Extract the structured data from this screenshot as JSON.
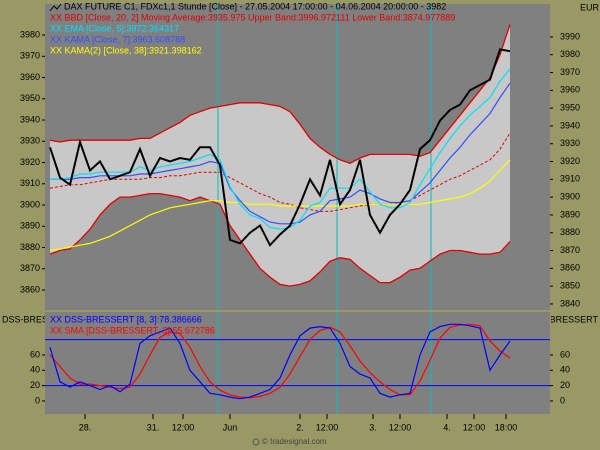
{
  "title": "DAX FUTURE C1, FDXc1,1 Stunde [Close] - 27.05.2004 17:00:00 - 04.06.2004 20:00:00 - 3982",
  "currency": "EUR",
  "footer": "© tradesignal.com",
  "chart_data": [
    {
      "type": "line",
      "x": [
        0,
        1,
        2,
        3,
        4,
        5,
        6,
        7,
        8,
        9,
        10,
        11,
        12,
        13,
        14,
        15,
        16,
        17,
        18,
        19,
        20,
        21,
        22,
        23,
        24,
        25,
        26,
        27,
        28,
        29,
        30,
        31,
        32,
        33,
        34,
        35,
        36,
        37,
        38,
        39,
        40,
        41,
        42,
        43,
        44,
        45,
        46
      ],
      "xlim": [
        -0.5,
        50
      ],
      "xticks": [
        {
          "value": 3.5,
          "label": "28."
        },
        {
          "value": 10.3,
          "label": "31."
        },
        {
          "value": 13.3,
          "label": "12:00"
        },
        {
          "value": 18,
          "label": "Jun"
        },
        {
          "value": 25,
          "label": "2."
        },
        {
          "value": 27.7,
          "label": "12:00"
        },
        {
          "value": 32.3,
          "label": "3."
        },
        {
          "value": 35,
          "label": "12:00"
        },
        {
          "value": 39.7,
          "label": "4."
        },
        {
          "value": 42.4,
          "label": "12:00"
        },
        {
          "value": 45.6,
          "label": "18:00"
        }
      ],
      "ylim": [
        3850.6,
        3994.6
      ],
      "yticks": [
        3860,
        3870,
        3880,
        3890,
        3900,
        3910,
        3920,
        3930,
        3940,
        3950,
        3960,
        3970,
        3980
      ],
      "y2lim": [
        3836.6,
        4008.5
      ],
      "y2ticks": [
        3840,
        3850,
        3860,
        3870,
        3880,
        3890,
        3900,
        3910,
        3920,
        3930,
        3940,
        3950,
        3960,
        3970,
        3980,
        3990
      ],
      "separators": [
        16.8,
        28.7,
        38.1
      ],
      "separator_color": "#00c0c0",
      "bands": {
        "name": "XX BBD [Close, 20, 2] Moving Average:3935.975 Upper Band:3996.972111 Lower Band:3874.977889",
        "color": "#e00000",
        "fill": "#c8c8c8",
        "axis": "y2",
        "upper": [
          3932,
          3931,
          3932,
          3932,
          3932,
          3932,
          3932,
          3932,
          3932,
          3933,
          3933,
          3936,
          3939,
          3942,
          3946,
          3948,
          3950,
          3951,
          3952,
          3953,
          3953,
          3953,
          3952,
          3951,
          3948,
          3941,
          3933,
          3928,
          3924,
          3921,
          3919,
          3922,
          3924,
          3924,
          3924,
          3924,
          3924,
          3923,
          3925,
          3932,
          3939,
          3946,
          3953,
          3960,
          3967,
          3980,
          3997
        ],
        "middle": [
          3905,
          3906,
          3907,
          3907,
          3908,
          3909,
          3910,
          3910,
          3910,
          3910,
          3911,
          3911,
          3912,
          3912,
          3913,
          3914,
          3914,
          3914,
          3911,
          3908,
          3905,
          3902,
          3900,
          3897,
          3896,
          3894,
          3893,
          3892,
          3892,
          3893,
          3894,
          3895,
          3896,
          3896,
          3896,
          3897,
          3898,
          3901,
          3904,
          3907,
          3910,
          3912,
          3915,
          3918,
          3921,
          3927,
          3936
        ],
        "lower": [
          3868,
          3870,
          3871,
          3876,
          3882,
          3890,
          3896,
          3900,
          3900,
          3901,
          3902,
          3902,
          3901,
          3900,
          3898,
          3900,
          3898,
          3896,
          3884,
          3876,
          3868,
          3860,
          3855,
          3851,
          3850,
          3851,
          3853,
          3858,
          3864,
          3866,
          3865,
          3860,
          3856,
          3852,
          3852,
          3855,
          3859,
          3860,
          3864,
          3868,
          3870,
          3870,
          3869,
          3868,
          3868,
          3869,
          3875
        ]
      },
      "series": [
        {
          "name": "XX EMA [Close, 5]:3972.364317",
          "color": "#00e0ff",
          "axis": "y2",
          "values": [
            3910,
            3910,
            3911,
            3913,
            3913,
            3914,
            3914,
            3914,
            3914,
            3917,
            3915,
            3917,
            3918,
            3919,
            3920,
            3922,
            3924,
            3921,
            3906,
            3896,
            3890,
            3888,
            3883,
            3882,
            3883,
            3887,
            3895,
            3897,
            3905,
            3905,
            3905,
            3910,
            3903,
            3896,
            3894,
            3894,
            3897,
            3907,
            3916,
            3925,
            3933,
            3940,
            3946,
            3951,
            3956,
            3965,
            3972
          ]
        },
        {
          "name": "XX KAMA [Close, 7]:3963.608788",
          "color": "#3050ff",
          "axis": "y2",
          "values": [
            3910,
            3910,
            3910,
            3911,
            3911,
            3912,
            3912,
            3912,
            3912,
            3913,
            3913,
            3914,
            3915,
            3916,
            3917,
            3918,
            3920,
            3919,
            3905,
            3898,
            3892,
            3889,
            3886,
            3885,
            3885,
            3886,
            3890,
            3892,
            3898,
            3899,
            3900,
            3904,
            3902,
            3899,
            3897,
            3897,
            3898,
            3903,
            3908,
            3915,
            3922,
            3928,
            3935,
            3941,
            3947,
            3956,
            3964
          ]
        },
        {
          "name": "XX KAMA(2) [Close, 38]:3921.398162",
          "color": "#ffff00",
          "axis": "y2",
          "values": [
            3870,
            3871,
            3872,
            3873,
            3874,
            3876,
            3878,
            3881,
            3884,
            3887,
            3890,
            3892,
            3894,
            3895,
            3896,
            3897,
            3898,
            3898,
            3897,
            3897,
            3896,
            3896,
            3896,
            3895,
            3895,
            3895,
            3895,
            3895,
            3895,
            3895,
            3895,
            3896,
            3896,
            3896,
            3896,
            3896,
            3896,
            3896,
            3897,
            3898,
            3899,
            3900,
            3902,
            3905,
            3909,
            3915,
            3921
          ]
        }
      ],
      "price": {
        "color": "#000000",
        "axis": "y2",
        "values": [
          3928,
          3911,
          3907,
          3931,
          3915,
          3920,
          3910,
          3912,
          3914,
          3927,
          3912,
          3922,
          3920,
          3922,
          3921,
          3928,
          3928,
          3918,
          3876,
          3874,
          3880,
          3884,
          3873,
          3879,
          3884,
          3896,
          3910,
          3901,
          3921,
          3896,
          3904,
          3921,
          3890,
          3880,
          3890,
          3896,
          3904,
          3927,
          3932,
          3943,
          3949,
          3952,
          3960,
          3963,
          3966,
          3983,
          3982
        ]
      }
    },
    {
      "type": "line",
      "label": "DSS-BRESSERT",
      "x": [
        0,
        1,
        2,
        3,
        4,
        5,
        6,
        7,
        8,
        9,
        10,
        11,
        12,
        13,
        14,
        15,
        16,
        17,
        18,
        19,
        20,
        21,
        22,
        23,
        24,
        25,
        26,
        27,
        28,
        29,
        30,
        31,
        32,
        33,
        34,
        35,
        36,
        37,
        38,
        39,
        40,
        41,
        42,
        43,
        44,
        45,
        46
      ],
      "xlim": [
        -0.5,
        50
      ],
      "ylim": [
        -17,
        116
      ],
      "yticks": [
        0,
        20,
        40,
        60
      ],
      "levels": [
        80,
        20
      ],
      "level_color": "#0000ff",
      "separators": [
        16.8,
        28.7,
        38.1
      ],
      "separator_color": "#00c0c0",
      "series": [
        {
          "name": "XX DSS-BRESSERT [8, 3]:78.386666",
          "color": "#0000ff",
          "values": [
            70,
            25,
            18,
            25,
            20,
            15,
            20,
            12,
            22,
            75,
            85,
            90,
            95,
            75,
            40,
            25,
            10,
            8,
            5,
            3,
            5,
            10,
            15,
            30,
            60,
            85,
            95,
            97,
            95,
            75,
            45,
            35,
            30,
            10,
            5,
            8,
            10,
            60,
            90,
            97,
            100,
            100,
            98,
            95,
            40,
            60,
            78
          ]
        },
        {
          "name": "XX SMA [DSS-BRESSERT, 3]:55.672786",
          "color": "#ff0000",
          "values": [
            60,
            45,
            30,
            22,
            22,
            20,
            18,
            16,
            18,
            35,
            60,
            83,
            90,
            88,
            70,
            45,
            25,
            14,
            8,
            5,
            4,
            6,
            10,
            18,
            35,
            58,
            80,
            92,
            96,
            90,
            72,
            52,
            37,
            25,
            15,
            8,
            8,
            26,
            53,
            82,
            96,
            99,
            100,
            98,
            78,
            65,
            56
          ]
        }
      ]
    }
  ]
}
